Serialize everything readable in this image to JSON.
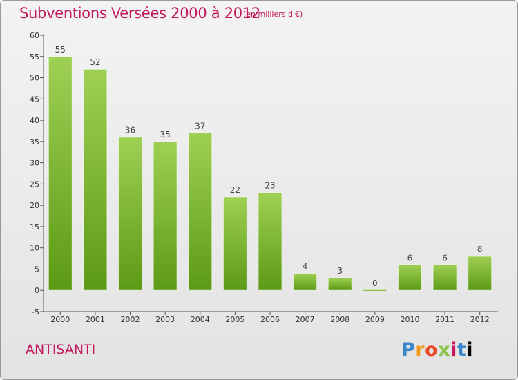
{
  "title": "Subventions Versées 2000 à 2012",
  "subtitle": "(en milliers d'€)",
  "commune": "ANTISANTI",
  "logo_text": "Proxiti",
  "colors": {
    "accent": "#c2185b",
    "bar_top": "#9fd054",
    "bar_bottom": "#5c9a15"
  },
  "chart_data": {
    "type": "bar",
    "categories": [
      "2000",
      "2001",
      "2002",
      "2003",
      "2004",
      "2005",
      "2006",
      "2007",
      "2008",
      "2009",
      "2010",
      "2011",
      "2012"
    ],
    "values": [
      55,
      52,
      36,
      35,
      37,
      22,
      23,
      4,
      3,
      0,
      6,
      6,
      8
    ],
    "title": "Subventions Versées 2000 à 2012",
    "xlabel": "",
    "ylabel": "",
    "ylim": [
      -5,
      60
    ],
    "yticks": [
      -5,
      0,
      5,
      10,
      15,
      20,
      25,
      30,
      35,
      40,
      45,
      50,
      55,
      60
    ],
    "grid": false,
    "legend": "none"
  }
}
